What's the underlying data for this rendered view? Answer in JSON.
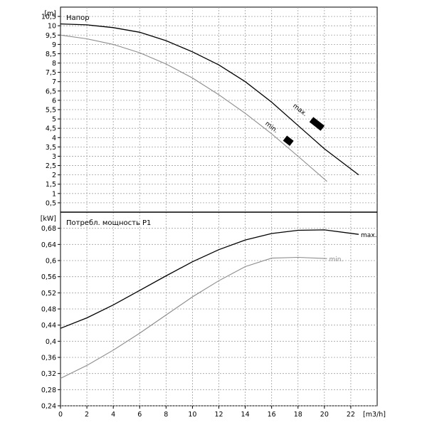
{
  "chart_data": [
    {
      "type": "line",
      "title": "Напор",
      "ylabel": "[m]",
      "xlim": [
        0,
        24
      ],
      "ylim": [
        0,
        11
      ],
      "x_ticks": [
        0,
        2,
        4,
        6,
        8,
        10,
        12,
        14,
        16,
        18,
        20,
        22
      ],
      "y_ticks": [
        "0,5",
        "1",
        "1,5",
        "2",
        "2,5",
        "3",
        "3,5",
        "4",
        "4,5",
        "5",
        "5,5",
        "6",
        "6,5",
        "7",
        "7,5",
        "8",
        "8,5",
        "9",
        "9,5",
        "10",
        "10,5"
      ],
      "y_tick_values": [
        0.5,
        1,
        1.5,
        2,
        2.5,
        3,
        3.5,
        4,
        4.5,
        5,
        5.5,
        6,
        6.5,
        7,
        7.5,
        8,
        8.5,
        9,
        9.5,
        10,
        10.5
      ],
      "grid": true,
      "series": [
        {
          "name": "max.",
          "color": "#000000",
          "x": [
            0,
            2,
            4,
            6,
            8,
            10,
            12,
            14,
            16,
            18,
            20,
            22.6
          ],
          "y": [
            10.1,
            10.05,
            9.9,
            9.65,
            9.2,
            8.6,
            7.9,
            7.0,
            5.9,
            4.65,
            3.4,
            2.0
          ]
        },
        {
          "name": "min.",
          "color": "#8c8c8c",
          "x": [
            0,
            2,
            4,
            6,
            8,
            10,
            12,
            14,
            16,
            18,
            20.2
          ],
          "y": [
            9.5,
            9.3,
            9.0,
            8.55,
            7.95,
            7.2,
            6.3,
            5.3,
            4.2,
            3.0,
            1.65
          ]
        }
      ],
      "markers": [
        {
          "series": "max.",
          "x": 19,
          "y": 4.8
        },
        {
          "series": "min.",
          "x": 17,
          "y": 3.8
        }
      ]
    },
    {
      "type": "line",
      "title": "Потребл. мощность P1",
      "ylabel": "[kW]",
      "xlabel": "[m3/h]",
      "xlim": [
        0,
        24
      ],
      "ylim": [
        0.24,
        0.72
      ],
      "x_ticks": [
        0,
        2,
        4,
        6,
        8,
        10,
        12,
        14,
        16,
        18,
        20,
        22
      ],
      "y_ticks": [
        "0,24",
        "0,28",
        "0,32",
        "0,36",
        "0,4",
        "0,44",
        "0,48",
        "0,52",
        "0,56",
        "0,6",
        "0,64",
        "0,68"
      ],
      "y_tick_values": [
        0.24,
        0.28,
        0.32,
        0.36,
        0.4,
        0.44,
        0.48,
        0.52,
        0.56,
        0.6,
        0.64,
        0.68
      ],
      "grid": true,
      "series": [
        {
          "name": "max.",
          "color": "#000000",
          "x": [
            0,
            2,
            4,
            6,
            8,
            10,
            12,
            14,
            16,
            18,
            20,
            22.6
          ],
          "y": [
            0.432,
            0.458,
            0.49,
            0.526,
            0.562,
            0.597,
            0.627,
            0.651,
            0.667,
            0.675,
            0.676,
            0.665
          ]
        },
        {
          "name": "min.",
          "color": "#8c8c8c",
          "x": [
            0,
            2,
            4,
            6,
            8,
            10,
            12,
            14,
            16,
            18,
            20.2
          ],
          "y": [
            0.308,
            0.34,
            0.378,
            0.42,
            0.465,
            0.51,
            0.55,
            0.585,
            0.606,
            0.608,
            0.605
          ]
        }
      ]
    }
  ]
}
